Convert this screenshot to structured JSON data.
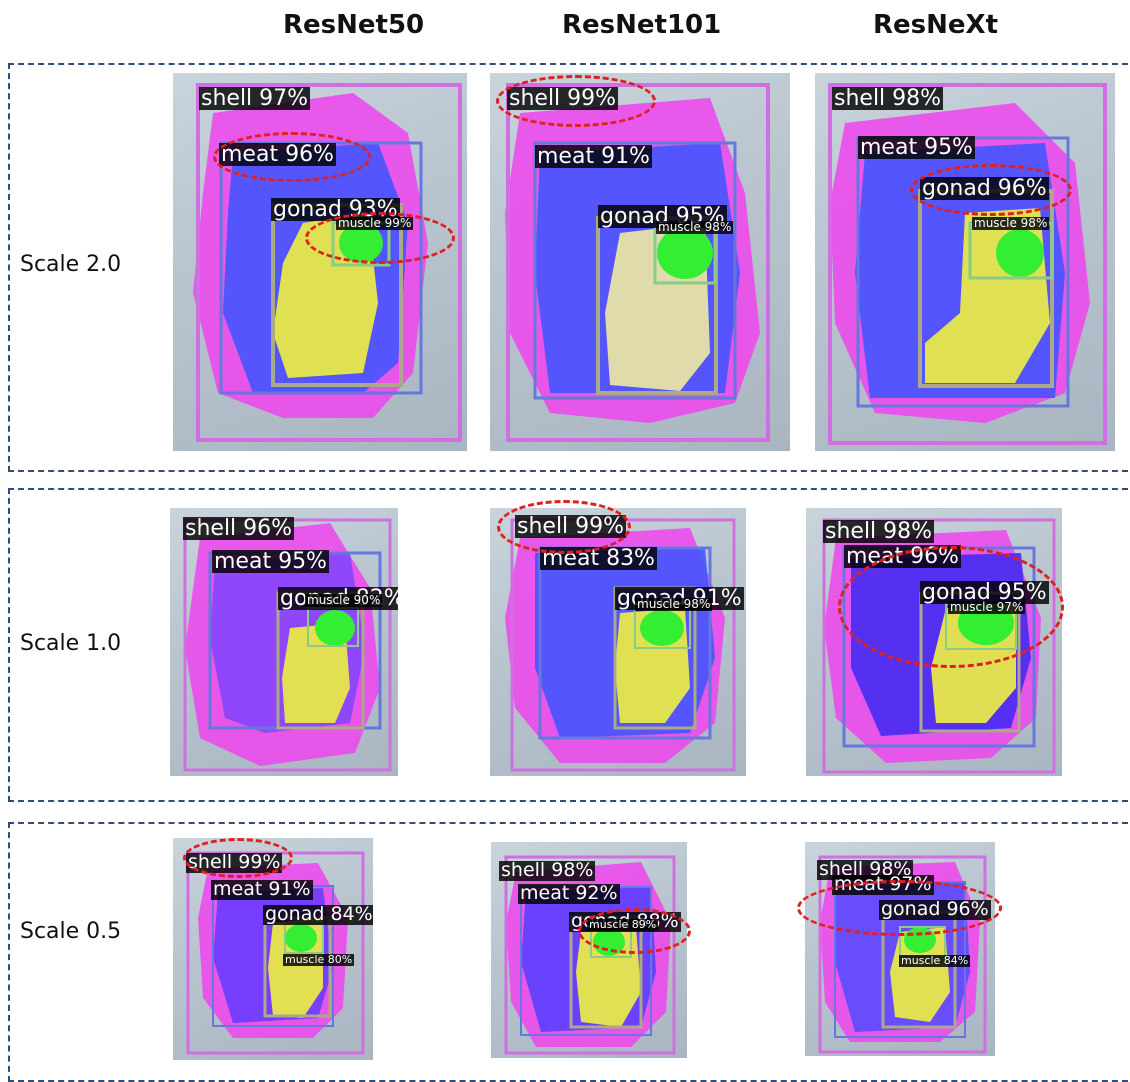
{
  "columns": [
    "ResNet50",
    "ResNet101",
    "ResNeXt"
  ],
  "rows": [
    "Scale 2.0",
    "Scale 1.0",
    "Scale 0.5"
  ],
  "panels": {
    "s2_r50": {
      "shell": "shell 97%",
      "meat": "meat 96%",
      "gonad": "gonad 93%",
      "muscle": "muscle 99%"
    },
    "s2_r101": {
      "shell": "shell 99%",
      "meat": "meat 91%",
      "gonad": "gonad 95%",
      "muscle": "muscle 98%"
    },
    "s2_rx": {
      "shell": "shell 98%",
      "meat": "meat 95%",
      "gonad": "gonad 96%",
      "muscle": "muscle 98%"
    },
    "s1_r50": {
      "shell": "shell 96%",
      "meat": "meat 95%",
      "gonad": "gonad 82%",
      "muscle": "muscle 90%"
    },
    "s1_r101": {
      "shell": "shell 99%",
      "meat": "meat 83%",
      "gonad": "gonad 91%",
      "muscle": "muscle 98%"
    },
    "s1_rx": {
      "shell": "shell 98%",
      "meat": "meat 96%",
      "gonad": "gonad 95%",
      "muscle": "muscle 97%"
    },
    "s05_r50": {
      "shell": "shell 99%",
      "meat": "meat 91%",
      "gonad": "gonad 84%",
      "muscle": "muscle 80%"
    },
    "s05_r101": {
      "shell": "shell 98%",
      "meat": "meat 92%",
      "gonad": "gonad 88%",
      "muscle": "muscle 89%"
    },
    "s05_rx": {
      "shell": "shell 98%",
      "meat": "meat 97%",
      "gonad": "gonad 96%",
      "muscle": "muscle 84%"
    }
  },
  "colors": {
    "shell": "#ee44ee",
    "meat": "#4455ff",
    "gonad": "#e8e84a",
    "muscle": "#33ee33",
    "highlight": "#e02020"
  }
}
